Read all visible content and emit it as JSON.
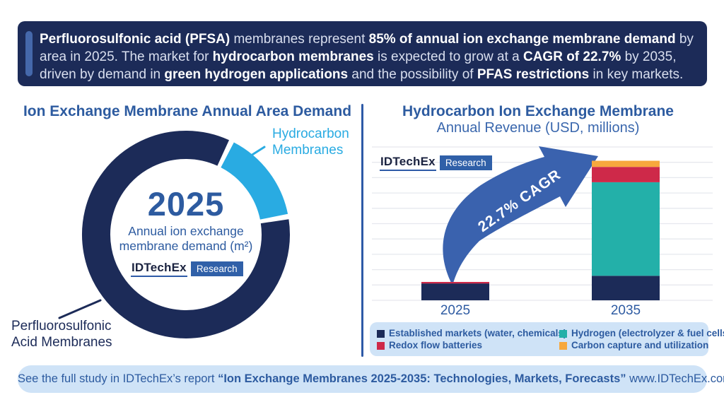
{
  "banner": {
    "lines": [
      [
        {
          "text": "Perfluorosulfonic acid (PFSA)",
          "bold": true
        },
        {
          "text": " membranes represent ",
          "bold": false
        },
        {
          "text": "85% of annual ion exchange membrane demand",
          "bold": true
        },
        {
          "text": " by",
          "bold": false
        }
      ],
      [
        {
          "text": "area in 2025. The market for ",
          "bold": false
        },
        {
          "text": "hydrocarbon membranes",
          "bold": true
        },
        {
          "text": " is expected to grow at a ",
          "bold": false
        },
        {
          "text": "CAGR of 22.7%",
          "bold": true
        },
        {
          "text": " by 2035,",
          "bold": false
        }
      ],
      [
        {
          "text": "driven by demand in ",
          "bold": false
        },
        {
          "text": "green hydrogen applications",
          "bold": true
        },
        {
          "text": " and the possibility of ",
          "bold": false
        },
        {
          "text": "PFAS restrictions",
          "bold": true
        },
        {
          "text": " in key markets.",
          "bold": false
        }
      ]
    ]
  },
  "logo": {
    "name": "IDTechEx",
    "research": "Research"
  },
  "left_chart": {
    "title": "Ion Exchange Membrane Annual Area Demand",
    "center_year": "2025",
    "center_caption": [
      "Annual ion exchange",
      "membrane demand (m²)"
    ],
    "hydrocarbon_label": [
      "Hydrocarbon",
      "Membranes"
    ],
    "pfsa_label": [
      "Perfluorosulfonic",
      "Acid Membranes"
    ]
  },
  "right_chart": {
    "title": "Hydrocarbon Ion Exchange Membrane",
    "subtitle": "Annual Revenue (USD, millions)",
    "cagr_label": "22.7% CAGR",
    "x_labels": [
      "2025",
      "2035"
    ]
  },
  "legend": {
    "items": [
      {
        "label": "Established markets (water, chemicals)",
        "color": "#1c2b58"
      },
      {
        "label": "Hydrogen (electrolyzer & fuel cells)",
        "color": "#23b0a9"
      },
      {
        "label": "Redox flow batteries",
        "color": "#ce2949"
      },
      {
        "label": "Carbon capture and utilization",
        "color": "#f7a83d"
      }
    ]
  },
  "footer": {
    "segments": [
      {
        "text": "See the full study in IDTechEx’s report ",
        "bold": false
      },
      {
        "text": "“Ion Exchange Membranes 2025-2035: Technologies, Markets, Forecasts”",
        "bold": true
      },
      {
        "text": " www.IDTechEx.com/IEMs",
        "bold": false
      }
    ]
  },
  "colors": {
    "banner_navy": "#1c2b58",
    "accent_blue": "#4568ab",
    "title_blue": "#2d5ba0",
    "hydrocarbon_lightblue": "#29abe2",
    "arrow_blue": "#3a62ae",
    "panel_lightblue": "#cfe3f7",
    "teal": "#23b0a9",
    "red": "#ce2949",
    "orange": "#f7a83d",
    "gridline": "#e6e8ee"
  },
  "chart_data": [
    {
      "type": "pie",
      "variant": "donut",
      "title": "Ion Exchange Membrane Annual Area Demand",
      "center_label": "2025 — Annual ion exchange membrane demand (m²)",
      "slices": [
        {
          "label": "Hydrocarbon Membranes",
          "value_pct": 15,
          "color": "#29abe2"
        },
        {
          "label": "Perfluorosulfonic Acid Membranes",
          "value_pct": 85,
          "color": "#1c2b58"
        }
      ],
      "start_angle_deg": 26,
      "legend_position": "callout-labels"
    },
    {
      "type": "bar",
      "stacked": true,
      "title": "Hydrocarbon Ion Exchange Membrane",
      "subtitle": "Annual Revenue (USD, millions)",
      "categories": [
        "2025",
        "2035"
      ],
      "series": [
        {
          "name": "Established markets (water, chemicals)",
          "color": "#1c2b58",
          "values": [
            1.1,
            1.6
          ]
        },
        {
          "name": "Hydrogen (electrolyzer & fuel cells)",
          "color": "#23b0a9",
          "values": [
            0,
            6.1
          ]
        },
        {
          "name": "Redox flow batteries",
          "color": "#ce2949",
          "values": [
            0.1,
            1.0
          ]
        },
        {
          "name": "Carbon capture and utilization",
          "color": "#f7a83d",
          "values": [
            0,
            0.4
          ]
        }
      ],
      "annotation": "22.7% CAGR",
      "ylabel": "Annual Revenue (USD, millions)",
      "ylim": [
        0,
        10
      ],
      "grid": true,
      "axis_note": "y-axis gridlines unlabeled; values estimated in gridline units (1 unit = 1 gridline step)",
      "legend_position": "bottom"
    }
  ]
}
